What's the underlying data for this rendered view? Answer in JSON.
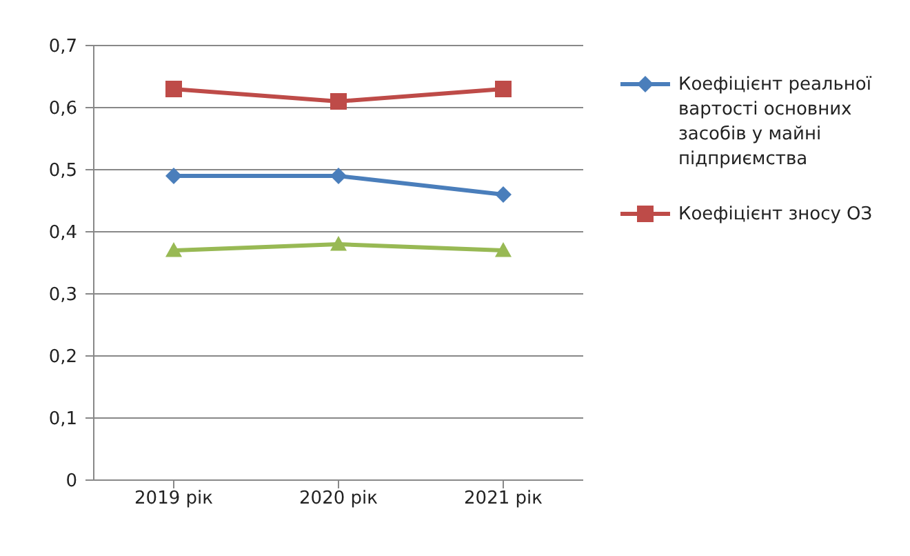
{
  "chart_data": {
    "type": "line",
    "categories": [
      "2019 рік",
      "2020 рік",
      "2021 рік"
    ],
    "series": [
      {
        "name": "Коефіцієнт реальної вартості основних засобів у майні підприємства",
        "color": "#4a7ebb",
        "marker": "diamond",
        "values": [
          0.49,
          0.49,
          0.46
        ]
      },
      {
        "name": "Коефіцієнт зносу ОЗ",
        "color": "#be4b48",
        "marker": "square",
        "values": [
          0.63,
          0.61,
          0.63
        ]
      },
      {
        "color": "#98b954",
        "marker": "triangle",
        "values": [
          0.37,
          0.38,
          0.37
        ]
      }
    ],
    "ylim": [
      0,
      0.7
    ],
    "yticks": [
      0,
      {
        "value": 0.1,
        "label": "0,1"
      },
      {
        "value": 0.2,
        "label": "0,2"
      },
      {
        "value": 0.3,
        "label": "0,3"
      },
      {
        "value": 0.4,
        "label": "0,4"
      },
      {
        "value": 0.5,
        "label": "0,5"
      },
      {
        "value": 0.6,
        "label": "0,6"
      },
      {
        "value": 0.7,
        "label": "0,7"
      }
    ],
    "grid": "y",
    "legend": "right"
  }
}
